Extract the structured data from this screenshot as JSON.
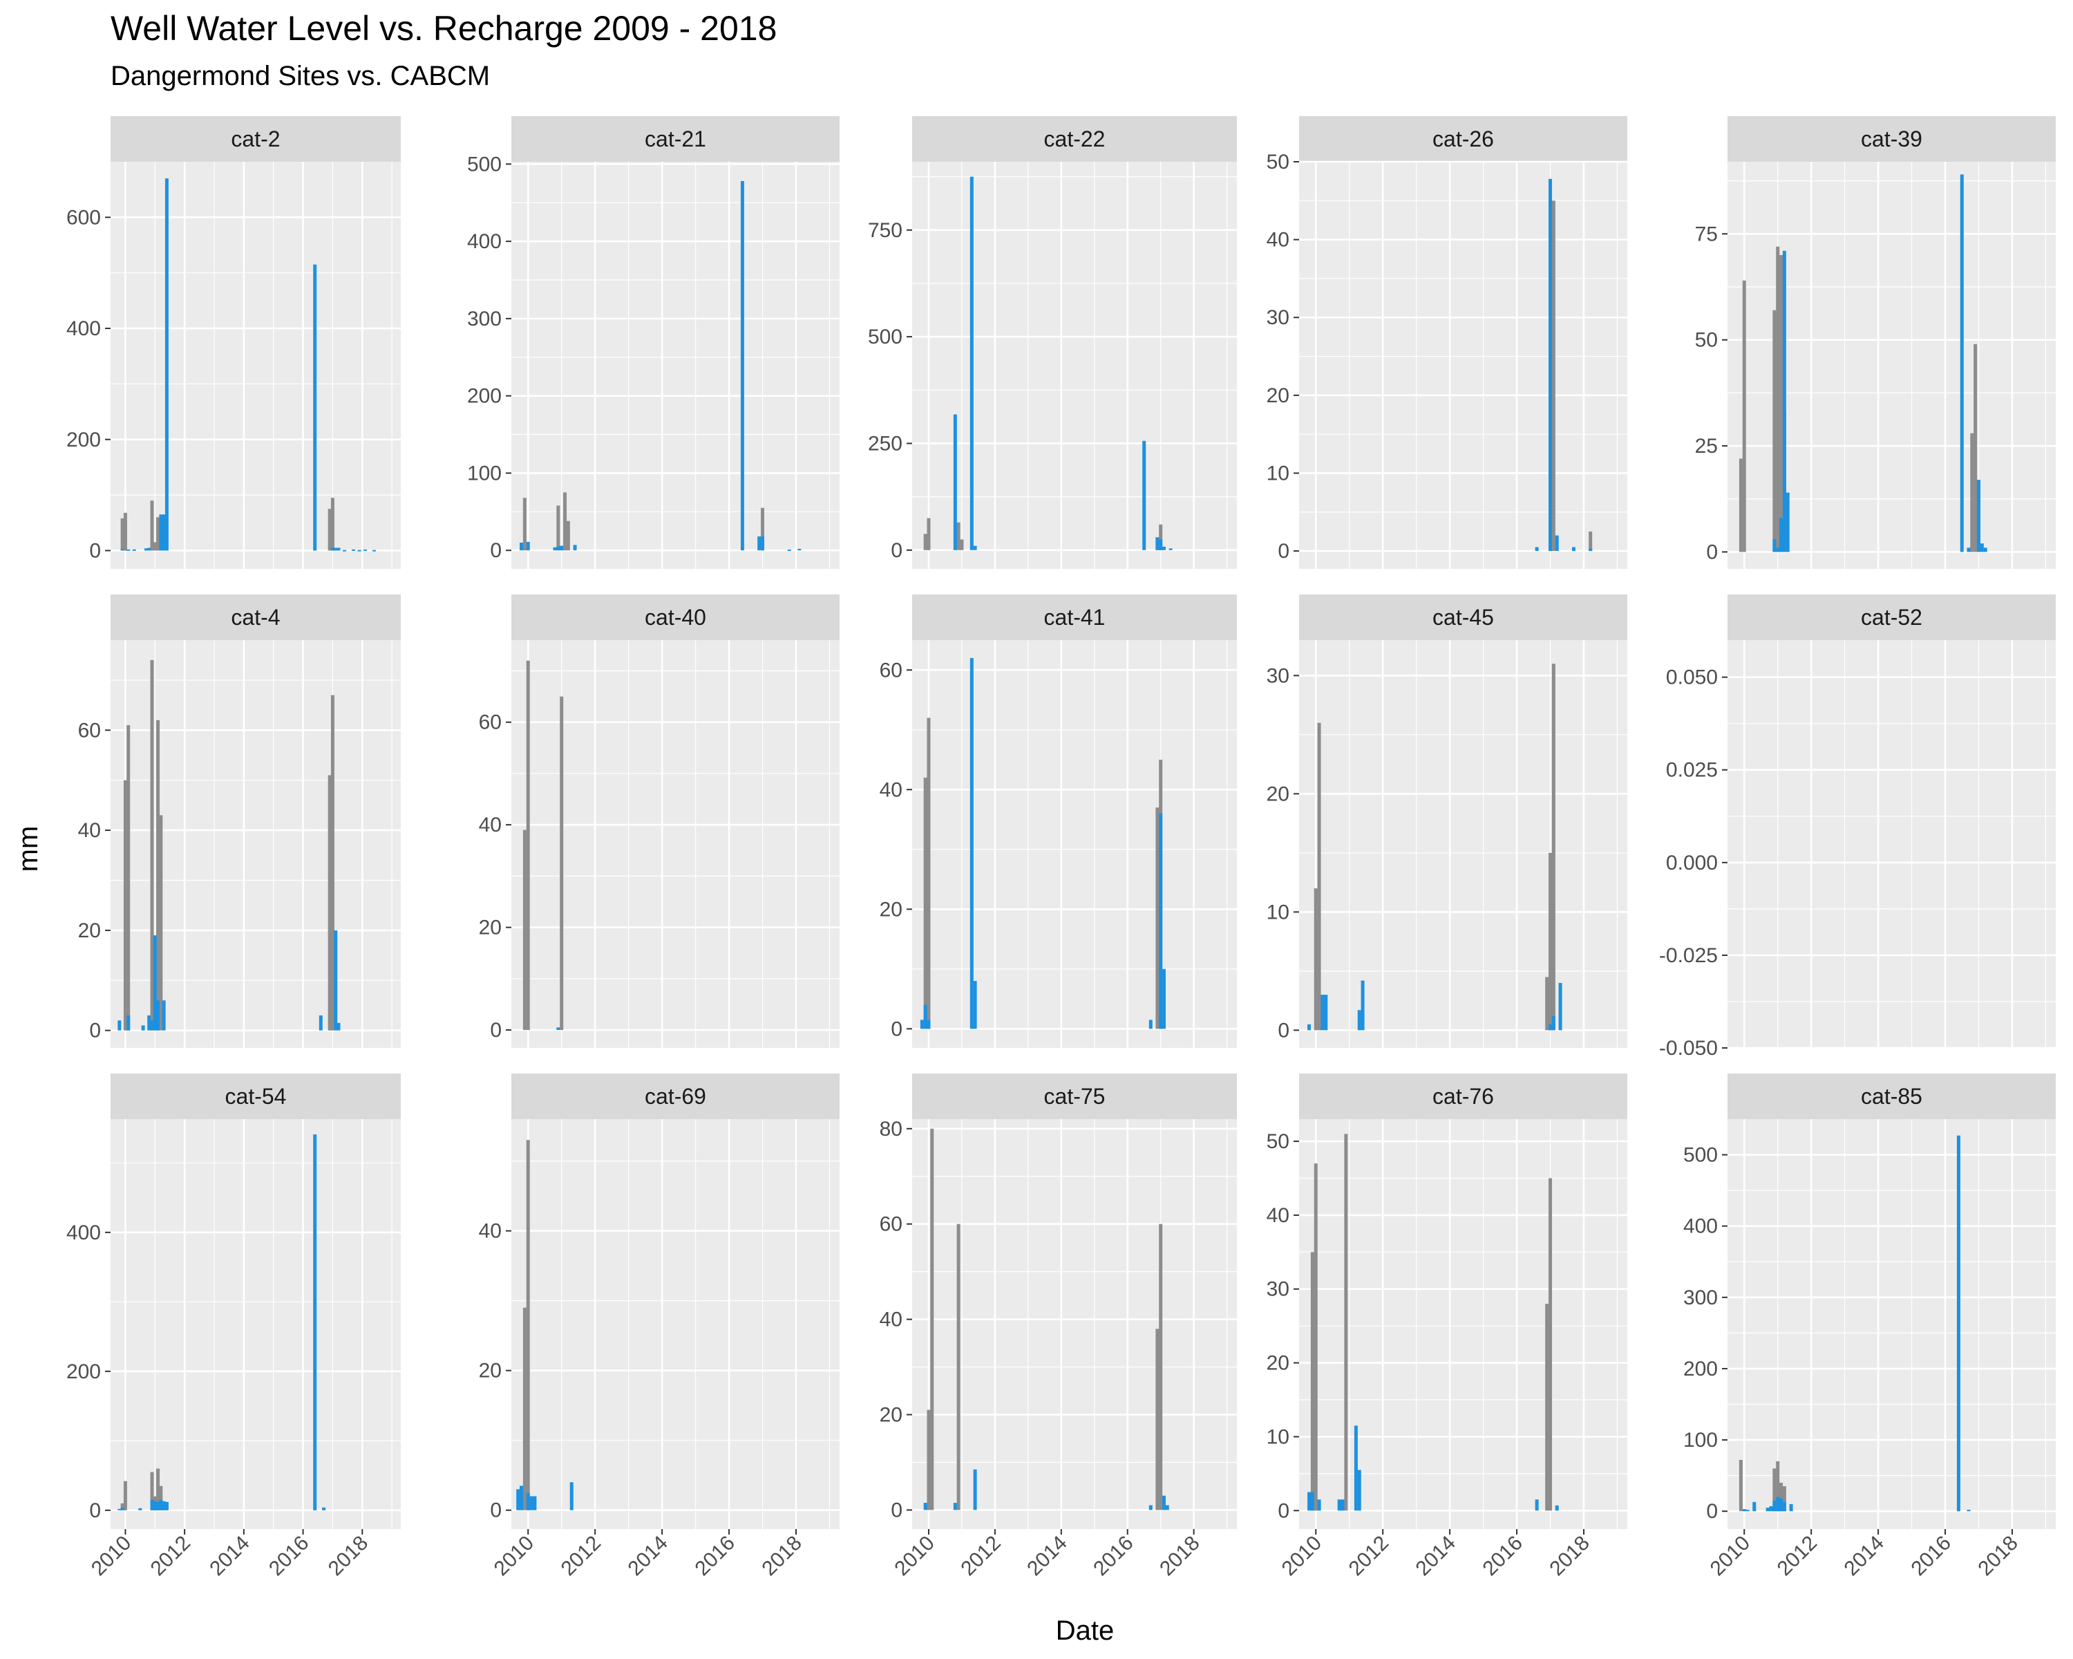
{
  "chart_data": {
    "type": "bar",
    "title": "Well Water Level vs. Recharge 2009 - 2018",
    "subtitle": "Dangermond Sites vs. CABCM",
    "xlabel": "Date",
    "ylabel": "mm",
    "x_ticks": [
      "2010",
      "2012",
      "2014",
      "2016",
      "2018"
    ],
    "xlim": [
      2009.5,
      2019.3
    ],
    "grid": true,
    "facet_layout": "wrap 5 columns x 3 rows, free y scales, shared x",
    "colors": {
      "panel_bg": "#ebebeb",
      "grid": "#ffffff",
      "strip_bg": "#d9d9d9",
      "series_a": "#8c8c8c",
      "series_b": "#1d91e0"
    },
    "series_names": [
      "",
      ""
    ],
    "panels": [
      {
        "name": "cat-2",
        "y_ticks": [
          0,
          200,
          400,
          600
        ],
        "ylim": [
          -33,
          700
        ],
        "series_a": [
          [
            2009.9,
            58
          ],
          [
            2010.0,
            68
          ],
          [
            2010.9,
            90
          ],
          [
            2011.0,
            15
          ],
          [
            2011.1,
            60
          ],
          [
            2016.9,
            75
          ],
          [
            2017.0,
            95
          ]
        ],
        "series_b": [
          [
            2009.9,
            3
          ],
          [
            2010.1,
            2
          ],
          [
            2010.3,
            2
          ],
          [
            2010.7,
            4
          ],
          [
            2010.8,
            5
          ],
          [
            2011.2,
            65
          ],
          [
            2011.3,
            65
          ],
          [
            2011.4,
            670
          ],
          [
            2016.4,
            515
          ],
          [
            2017.0,
            5
          ],
          [
            2017.1,
            5
          ],
          [
            2017.2,
            5
          ],
          [
            2017.4,
            1
          ],
          [
            2017.7,
            2
          ],
          [
            2017.9,
            1
          ],
          [
            2018.1,
            2
          ],
          [
            2018.4,
            1
          ]
        ]
      },
      {
        "name": "cat-21",
        "y_ticks": [
          0,
          100,
          200,
          300,
          400,
          500
        ],
        "ylim": [
          -24,
          503
        ],
        "series_a": [
          [
            2009.9,
            68
          ],
          [
            2010.9,
            58
          ],
          [
            2011.1,
            75
          ],
          [
            2011.2,
            38
          ],
          [
            2017.0,
            55
          ]
        ],
        "series_b": [
          [
            2009.8,
            10
          ],
          [
            2010.0,
            11
          ],
          [
            2010.8,
            4
          ],
          [
            2010.9,
            5
          ],
          [
            2011.0,
            6
          ],
          [
            2011.4,
            7
          ],
          [
            2016.4,
            478
          ],
          [
            2016.9,
            18
          ],
          [
            2017.0,
            18
          ],
          [
            2017.8,
            1
          ],
          [
            2018.1,
            2
          ]
        ]
      },
      {
        "name": "cat-22",
        "y_ticks": [
          0,
          250,
          500,
          750
        ],
        "ylim": [
          -44,
          910
        ],
        "series_a": [
          [
            2009.9,
            38
          ],
          [
            2010.0,
            75
          ],
          [
            2010.9,
            65
          ],
          [
            2011.0,
            25
          ],
          [
            2016.9,
            30
          ],
          [
            2017.0,
            60
          ]
        ],
        "series_b": [
          [
            2010.8,
            318
          ],
          [
            2011.3,
            875
          ],
          [
            2011.4,
            10
          ],
          [
            2016.5,
            256
          ],
          [
            2016.9,
            30
          ],
          [
            2017.0,
            25
          ],
          [
            2017.1,
            8
          ],
          [
            2017.3,
            4
          ]
        ]
      },
      {
        "name": "cat-26",
        "y_ticks": [
          0,
          10,
          20,
          30,
          40,
          50
        ],
        "ylim": [
          -2.3,
          50
        ],
        "series_a": [
          [
            2017.0,
            25
          ],
          [
            2017.1,
            45
          ],
          [
            2018.2,
            2.5
          ]
        ],
        "series_b": [
          [
            2016.6,
            0.5
          ],
          [
            2017.0,
            47.8
          ],
          [
            2017.2,
            2
          ],
          [
            2017.7,
            0.5
          ],
          [
            2018.2,
            0.3
          ]
        ]
      },
      {
        "name": "cat-39",
        "y_ticks": [
          0,
          25,
          50,
          75
        ],
        "ylim": [
          -4,
          92
        ],
        "series_a": [
          [
            2009.9,
            22
          ],
          [
            2010.0,
            64
          ],
          [
            2010.9,
            57
          ],
          [
            2011.0,
            72
          ],
          [
            2011.1,
            70
          ],
          [
            2011.2,
            33
          ],
          [
            2016.8,
            28
          ],
          [
            2016.9,
            49
          ]
        ],
        "series_b": [
          [
            2010.9,
            3
          ],
          [
            2011.0,
            1
          ],
          [
            2011.1,
            8
          ],
          [
            2011.2,
            71
          ],
          [
            2011.3,
            14
          ],
          [
            2016.5,
            89
          ],
          [
            2016.7,
            1
          ],
          [
            2017.0,
            17
          ],
          [
            2017.1,
            2
          ],
          [
            2017.2,
            1
          ]
        ]
      },
      {
        "name": "cat-4",
        "y_ticks": [
          0,
          20,
          40,
          60
        ],
        "ylim": [
          -3.5,
          78
        ],
        "series_a": [
          [
            2010.0,
            50
          ],
          [
            2010.1,
            61
          ],
          [
            2010.9,
            74
          ],
          [
            2011.1,
            62
          ],
          [
            2011.2,
            43
          ],
          [
            2016.9,
            51
          ],
          [
            2017.0,
            67
          ]
        ],
        "series_b": [
          [
            2009.8,
            2
          ],
          [
            2010.1,
            3
          ],
          [
            2010.6,
            1
          ],
          [
            2010.8,
            3
          ],
          [
            2010.9,
            2
          ],
          [
            2011.0,
            19
          ],
          [
            2011.1,
            6
          ],
          [
            2011.3,
            6
          ],
          [
            2016.6,
            3
          ],
          [
            2017.1,
            20
          ],
          [
            2017.2,
            1.5
          ]
        ]
      },
      {
        "name": "cat-40",
        "y_ticks": [
          0,
          20,
          40,
          60
        ],
        "ylim": [
          -3.5,
          76
        ],
        "series_a": [
          [
            2009.9,
            39
          ],
          [
            2010.0,
            72
          ],
          [
            2011.0,
            65
          ]
        ],
        "series_b": [
          [
            2010.9,
            0.5
          ]
        ]
      },
      {
        "name": "cat-41",
        "y_ticks": [
          0,
          20,
          40,
          60
        ],
        "ylim": [
          -3.2,
          65
        ],
        "series_a": [
          [
            2009.9,
            42
          ],
          [
            2010.0,
            52
          ],
          [
            2016.9,
            37
          ],
          [
            2017.0,
            45
          ]
        ],
        "series_b": [
          [
            2009.8,
            1.5
          ],
          [
            2009.9,
            4
          ],
          [
            2010.0,
            1.5
          ],
          [
            2011.3,
            62
          ],
          [
            2011.4,
            8
          ],
          [
            2016.7,
            1.5
          ],
          [
            2017.0,
            36
          ],
          [
            2017.1,
            10
          ]
        ]
      },
      {
        "name": "cat-45",
        "y_ticks": [
          0,
          10,
          20,
          30
        ],
        "ylim": [
          -1.5,
          33
        ],
        "series_a": [
          [
            2010.0,
            12
          ],
          [
            2010.1,
            26
          ],
          [
            2016.9,
            4.5
          ],
          [
            2017.0,
            15
          ],
          [
            2017.1,
            31
          ]
        ],
        "series_b": [
          [
            2009.8,
            0.5
          ],
          [
            2010.2,
            3
          ],
          [
            2010.3,
            3
          ],
          [
            2011.3,
            1.7
          ],
          [
            2011.4,
            4.2
          ],
          [
            2017.0,
            0.5
          ],
          [
            2017.1,
            1.2
          ],
          [
            2017.3,
            4
          ]
        ]
      },
      {
        "name": "cat-52",
        "y_ticks": [
          -0.05,
          -0.025,
          0.0,
          0.025,
          0.05
        ],
        "ylim": [
          -0.05,
          0.06
        ],
        "series_a": [],
        "series_b": []
      },
      {
        "name": "cat-54",
        "y_ticks": [
          0,
          200,
          400
        ],
        "ylim": [
          -27,
          563
        ],
        "series_a": [
          [
            2009.9,
            10
          ],
          [
            2010.0,
            42
          ],
          [
            2010.9,
            55
          ],
          [
            2011.0,
            20
          ],
          [
            2011.1,
            60
          ],
          [
            2011.2,
            35
          ]
        ],
        "series_b": [
          [
            2009.8,
            2
          ],
          [
            2009.9,
            4
          ],
          [
            2010.5,
            3
          ],
          [
            2010.9,
            15
          ],
          [
            2011.0,
            13
          ],
          [
            2011.1,
            12
          ],
          [
            2011.2,
            15
          ],
          [
            2011.3,
            13
          ],
          [
            2011.4,
            12
          ],
          [
            2016.4,
            541
          ],
          [
            2016.7,
            4
          ]
        ]
      },
      {
        "name": "cat-69",
        "y_ticks": [
          0,
          20,
          40
        ],
        "ylim": [
          -2.7,
          56
        ],
        "series_a": [
          [
            2009.9,
            29
          ],
          [
            2010.0,
            53
          ]
        ],
        "series_b": [
          [
            2009.7,
            3
          ],
          [
            2009.8,
            3.5
          ],
          [
            2010.0,
            2.5
          ],
          [
            2010.1,
            2
          ],
          [
            2010.2,
            2
          ],
          [
            2011.3,
            4
          ]
        ]
      },
      {
        "name": "cat-75",
        "y_ticks": [
          0,
          20,
          40,
          60,
          80
        ],
        "ylim": [
          -4,
          82
        ],
        "series_a": [
          [
            2010.0,
            21
          ],
          [
            2010.1,
            80
          ],
          [
            2010.9,
            60
          ],
          [
            2016.9,
            38
          ],
          [
            2017.0,
            60
          ]
        ],
        "series_b": [
          [
            2009.9,
            1.5
          ],
          [
            2010.8,
            1.5
          ],
          [
            2011.4,
            8.5
          ],
          [
            2016.7,
            1
          ],
          [
            2017.1,
            3
          ],
          [
            2017.2,
            1
          ]
        ]
      },
      {
        "name": "cat-76",
        "y_ticks": [
          0,
          10,
          20,
          30,
          40,
          50
        ],
        "ylim": [
          -2.5,
          53
        ],
        "series_a": [
          [
            2009.9,
            35
          ],
          [
            2010.0,
            47
          ],
          [
            2010.9,
            51
          ],
          [
            2016.9,
            28
          ],
          [
            2017.0,
            45
          ]
        ],
        "series_b": [
          [
            2009.8,
            2.5
          ],
          [
            2009.9,
            2.5
          ],
          [
            2010.1,
            1.5
          ],
          [
            2010.7,
            1.5
          ],
          [
            2010.8,
            1.5
          ],
          [
            2011.2,
            11.5
          ],
          [
            2011.3,
            5.5
          ],
          [
            2016.6,
            1.5
          ],
          [
            2017.2,
            0.7
          ]
        ]
      },
      {
        "name": "cat-85",
        "y_ticks": [
          0,
          100,
          200,
          300,
          400,
          500
        ],
        "ylim": [
          -25,
          550
        ],
        "series_a": [
          [
            2009.9,
            72
          ],
          [
            2010.9,
            60
          ],
          [
            2011.0,
            70
          ],
          [
            2011.1,
            40
          ],
          [
            2011.2,
            35
          ]
        ],
        "series_b": [
          [
            2010.0,
            3
          ],
          [
            2010.1,
            2
          ],
          [
            2010.3,
            13
          ],
          [
            2010.7,
            5
          ],
          [
            2010.8,
            7
          ],
          [
            2010.9,
            15
          ],
          [
            2011.0,
            20
          ],
          [
            2011.1,
            18
          ],
          [
            2011.2,
            13
          ],
          [
            2011.4,
            10
          ],
          [
            2016.4,
            527
          ],
          [
            2016.7,
            2
          ]
        ]
      }
    ]
  }
}
